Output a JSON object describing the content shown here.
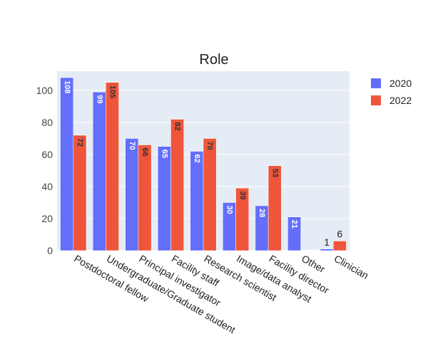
{
  "chart_data": {
    "type": "bar",
    "title": "Role",
    "categories": [
      "Postdoctoral fellow",
      "Undergraduate/Graduate student",
      "Principal investigator",
      "Facility staff",
      "Research scientist",
      "Image/data analyst",
      "Facility director",
      "Other",
      "Clinician"
    ],
    "series": [
      {
        "name": "2020",
        "color": "#636efa",
        "values": [
          108,
          99,
          70,
          65,
          62,
          30,
          28,
          21,
          1
        ]
      },
      {
        "name": "2022",
        "color": "#ef553b",
        "values": [
          72,
          105,
          66,
          82,
          70,
          39,
          53,
          null,
          6
        ]
      }
    ],
    "ylim": [
      0,
      112
    ],
    "yticks": [
      0,
      20,
      40,
      60,
      80,
      100
    ],
    "grid": true,
    "legend_position": "right",
    "plot_background": "#e5ecf6"
  }
}
